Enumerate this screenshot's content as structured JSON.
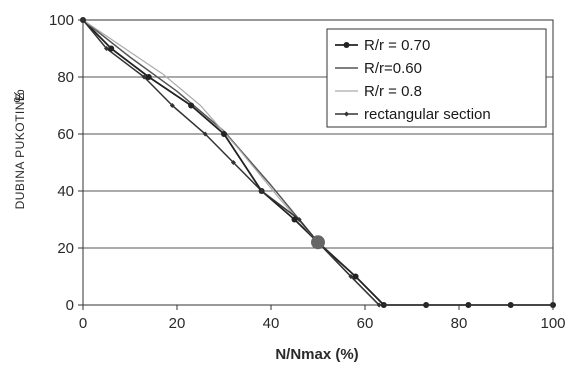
{
  "chart_data": {
    "type": "line",
    "xlabel": "N/Nmax  (%)",
    "ylabel": "DUBINA PUKOTINE",
    "ylabel_unit": "%",
    "xlim": [
      0,
      100
    ],
    "ylim": [
      0,
      100
    ],
    "x_ticks": [
      0,
      20,
      40,
      60,
      80,
      100
    ],
    "y_ticks": [
      0,
      20,
      40,
      60,
      80,
      100
    ],
    "grid": "horizontal",
    "legend_position": "top-right",
    "series": [
      {
        "name": "R/r = 0.70",
        "color": "#222222",
        "marker": "circle",
        "x": [
          0,
          6,
          14,
          23,
          30,
          38,
          45,
          50,
          58,
          64,
          73,
          82,
          91,
          100
        ],
        "y": [
          100,
          90,
          80,
          70,
          60,
          40,
          30,
          22,
          10,
          0,
          0,
          0,
          0,
          0
        ]
      },
      {
        "name": "R/r=0.60",
        "color": "#555555",
        "marker": "none",
        "x": [
          0,
          10,
          20,
          30,
          40,
          50,
          57,
          63
        ],
        "y": [
          100,
          87,
          75,
          61,
          42,
          22,
          10,
          0
        ]
      },
      {
        "name": "R/r = 0.8",
        "color": "#aaaaaa",
        "marker": "none",
        "x": [
          0,
          8,
          17,
          25,
          33,
          42,
          50,
          57,
          63
        ],
        "y": [
          100,
          91,
          81,
          70,
          55,
          37,
          22,
          10,
          0
        ]
      },
      {
        "name": "rectangular section",
        "color": "#333333",
        "marker": "small-diamond",
        "x": [
          0,
          5,
          13,
          19,
          26,
          32,
          38,
          46,
          50,
          57,
          63
        ],
        "y": [
          100,
          90,
          80,
          70,
          60,
          50,
          40,
          30,
          22,
          10,
          0
        ]
      }
    ]
  }
}
